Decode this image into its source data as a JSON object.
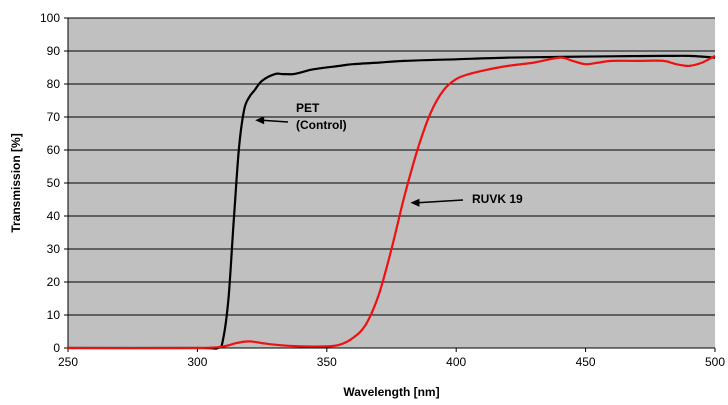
{
  "chart_data": {
    "type": "line",
    "title": "",
    "xlabel": "Wavelength [nm]",
    "ylabel": "Transmission [%]",
    "xlim": [
      250,
      500
    ],
    "ylim": [
      0,
      100
    ],
    "xticks": [
      250,
      300,
      350,
      400,
      450,
      500
    ],
    "yticks": [
      0,
      10,
      20,
      30,
      40,
      50,
      60,
      70,
      80,
      90,
      100
    ],
    "grid": "horizontal",
    "background": "#c0c0c0",
    "series": [
      {
        "name": "PET (Control)",
        "color": "#000000",
        "x": [
          250,
          300,
          308,
          310,
          312,
          314,
          316,
          318,
          320,
          322,
          325,
          330,
          333,
          337,
          340,
          345,
          355,
          360,
          370,
          380,
          400,
          420,
          440,
          460,
          480,
          490,
          500
        ],
        "y": [
          0,
          0,
          0,
          3,
          15,
          38,
          60,
          72,
          76,
          78,
          81,
          83,
          83,
          83,
          83.5,
          84.5,
          85.5,
          86,
          86.5,
          87,
          87.5,
          88,
          88.2,
          88.4,
          88.5,
          88.5,
          88
        ]
      },
      {
        "name": "RUVK 19",
        "color": "#ee1111",
        "x": [
          250,
          300,
          310,
          315,
          320,
          325,
          330,
          340,
          350,
          355,
          360,
          365,
          370,
          375,
          380,
          385,
          390,
          395,
          400,
          405,
          410,
          420,
          430,
          440,
          445,
          450,
          455,
          460,
          470,
          480,
          485,
          490,
          495,
          500
        ],
        "y": [
          0,
          0,
          0.5,
          1.5,
          2,
          1.5,
          1,
          0.5,
          0.5,
          1,
          3,
          7,
          16,
          30,
          46,
          60,
          71,
          78,
          81.5,
          83,
          84,
          85.5,
          86.5,
          88,
          87,
          86,
          86.5,
          87,
          87,
          87,
          86,
          85.5,
          86.5,
          88.5
        ]
      }
    ],
    "annotations": [
      {
        "lines": [
          "PET",
          "(Control)"
        ],
        "points_to": {
          "x": 320,
          "y": 69
        }
      },
      {
        "lines": [
          "RUVK 19"
        ],
        "points_to": {
          "x": 380,
          "y": 44
        }
      }
    ]
  }
}
